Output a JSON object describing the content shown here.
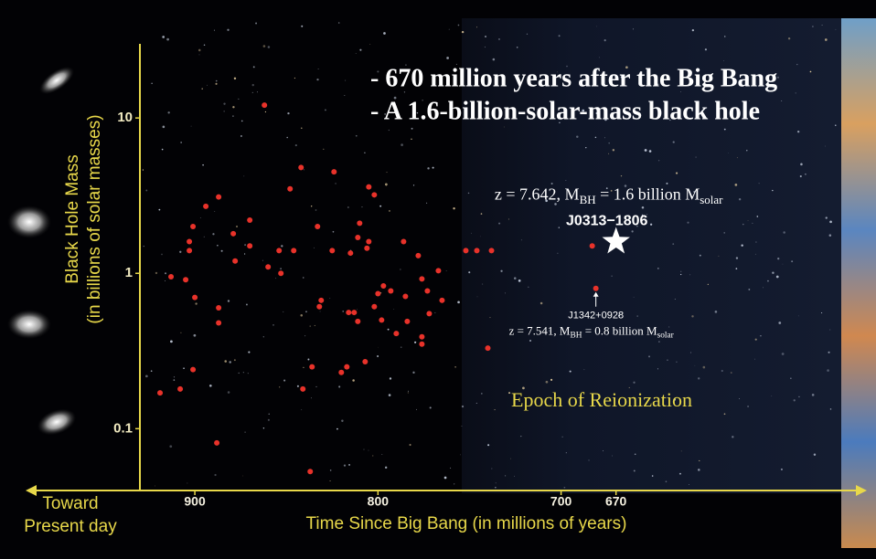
{
  "chart_data": {
    "type": "scatter",
    "bullets": [
      "- 670 million years after the Big Bang",
      "- A 1.6-billion-solar-mass black hole"
    ],
    "y_label": [
      "Black Hole Mass",
      "(in billions of solar masses)"
    ],
    "x_label": "Time Since Big Bang (in millions of years)",
    "x_direction_label": [
      "Toward",
      "Present day"
    ],
    "region_label": "Epoch of Reionization",
    "color": "#e8322a",
    "x": [
      862,
      842,
      824,
      848,
      894,
      805,
      802,
      887,
      870,
      810,
      811,
      833,
      879,
      805,
      901,
      903,
      903,
      870,
      846,
      825,
      815,
      806,
      878,
      854,
      860,
      853,
      786,
      778,
      752,
      746,
      738,
      913,
      905,
      900,
      887,
      887,
      831,
      832,
      816,
      813,
      802,
      800,
      797,
      793,
      785,
      776,
      773,
      767,
      765,
      811,
      798,
      790,
      784,
      776,
      776,
      740,
      772,
      901,
      908,
      919,
      888,
      841,
      836,
      820,
      817,
      807,
      837,
      683
    ],
    "values": [
      12.1,
      4.8,
      4.5,
      3.5,
      2.7,
      3.6,
      3.2,
      3.1,
      2.2,
      2.1,
      1.7,
      2.0,
      1.8,
      1.6,
      2.0,
      1.6,
      1.4,
      1.5,
      1.4,
      1.4,
      1.35,
      1.45,
      1.2,
      1.4,
      1.1,
      1.0,
      1.6,
      1.3,
      1.4,
      1.4,
      1.4,
      0.95,
      0.91,
      0.7,
      0.6,
      0.48,
      0.67,
      0.61,
      0.56,
      0.56,
      0.61,
      0.74,
      0.83,
      0.77,
      0.71,
      0.92,
      0.77,
      1.04,
      0.67,
      0.49,
      0.5,
      0.41,
      0.49,
      0.39,
      0.35,
      0.33,
      0.55,
      0.24,
      0.18,
      0.17,
      0.081,
      0.18,
      0.25,
      0.23,
      0.25,
      0.27,
      0.053,
      1.5
    ],
    "highlights": [
      {
        "name": "J0313−1806",
        "x": 670,
        "y": 1.6,
        "note": [
          "z = 7.642, M",
          "BH",
          " = 1.6 billion M",
          "solar"
        ]
      },
      {
        "name": "J1342+0928",
        "x": 681,
        "y": 0.8,
        "note": [
          "z = 7.541, M",
          "BH",
          " = 0.8 billion M",
          "solar"
        ]
      }
    ],
    "xlim": [
      930,
      547
    ],
    "xticks": [
      900,
      800,
      700,
      670
    ],
    "ylim": [
      0.04,
      30
    ],
    "yticks": [
      10,
      1,
      0.1
    ],
    "log_y": true,
    "grid": false
  }
}
